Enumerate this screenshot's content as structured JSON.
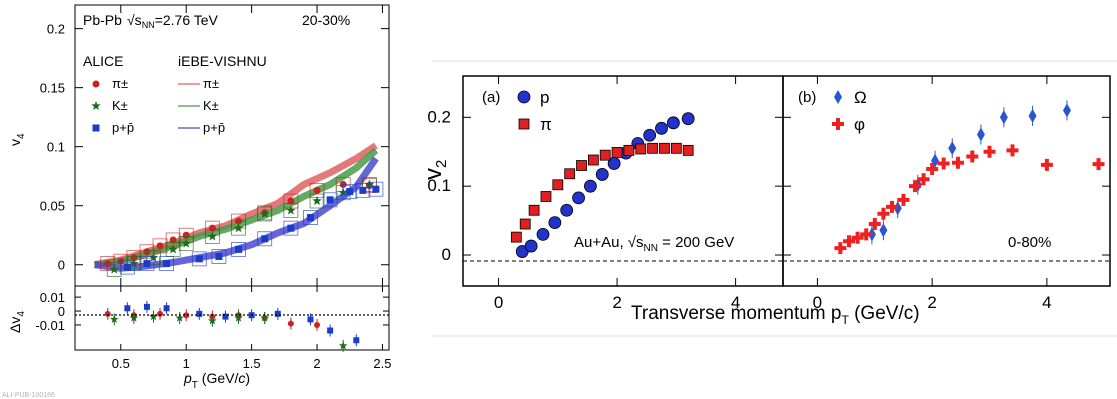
{
  "left_panel": {
    "header_system": "Pb-Pb",
    "header_energy": "√s",
    "header_energy_sub": "NN",
    "header_energy_value": "=2.76 TeV",
    "header_centrality": "20-30%",
    "legend_col1": "ALICE",
    "legend_col2": "iEBE-VISHNU",
    "ylabel_top": "v",
    "ylabel_top_sub": "4",
    "ylabel_bottom": "Δv",
    "ylabel_bottom_sub": "4",
    "xlabel": "p",
    "xlabel_sub": "T",
    "xlabel_unit": " (GeV/",
    "xlabel_unit_c": "c",
    "xlabel_close": ")",
    "watermark": "ALI-PUB-100186"
  },
  "right_panel": {
    "ylabel": "v",
    "ylabel_sub": "2",
    "xlabel": "Transverse momentum p",
    "xlabel_sub": "T",
    "xlabel_unit": " (GeV/c)",
    "panel_a_tag": "(a)",
    "panel_b_tag": "(b)",
    "panel_a_note_prefix": "Au+Au, ",
    "panel_a_note_sqrt": "√s",
    "panel_a_note_sub": "NN",
    "panel_a_note_suffix": " = 200 GeV",
    "panel_b_note": "0-80%"
  },
  "chart_data": [
    {
      "type": "scatter",
      "title": "",
      "xlabel": "pT (GeV/c)",
      "ylabel": "v4",
      "xlim": [
        0.15,
        2.55
      ],
      "ylim": [
        -0.018,
        0.22
      ],
      "x_ticks": [
        0.5,
        1,
        1.5,
        2,
        2.5
      ],
      "y_ticks": [
        0,
        0.05,
        0.1,
        0.15,
        0.2
      ],
      "series": [
        {
          "name": "π±",
          "group": "ALICE",
          "color": "#cc2222",
          "marker": "circle",
          "x": [
            0.4,
            0.5,
            0.6,
            0.7,
            0.8,
            0.9,
            1.0,
            1.2,
            1.4,
            1.6,
            1.8,
            2.0,
            2.2,
            2.4
          ],
          "y": [
            0.001,
            0.003,
            0.006,
            0.011,
            0.016,
            0.021,
            0.025,
            0.031,
            0.037,
            0.044,
            0.054,
            0.063,
            0.068,
            0.067
          ]
        },
        {
          "name": "K±",
          "group": "ALICE",
          "color": "#1a6e1a",
          "marker": "star",
          "x": [
            0.45,
            0.6,
            0.75,
            0.9,
            1.0,
            1.2,
            1.4,
            1.6,
            1.8,
            2.0,
            2.2,
            2.4
          ],
          "y": [
            -0.004,
            0.001,
            0.006,
            0.013,
            0.018,
            0.024,
            0.031,
            0.043,
            0.046,
            0.054,
            0.061,
            0.068
          ]
        },
        {
          "name": "p+p̄",
          "group": "ALICE",
          "color": "#1a3ccc",
          "marker": "square",
          "x": [
            0.55,
            0.7,
            0.85,
            1.1,
            1.25,
            1.4,
            1.6,
            1.8,
            1.95,
            2.1,
            2.25,
            2.35,
            2.45
          ],
          "y": [
            -0.002,
            0.001,
            0.001,
            0.005,
            0.007,
            0.013,
            0.022,
            0.031,
            0.04,
            0.055,
            0.062,
            0.063,
            0.064
          ]
        },
        {
          "name": "π±",
          "group": "iEBE-VISHNU",
          "color": "#e06060",
          "marker": "band",
          "x": [
            0.3,
            0.5,
            0.7,
            0.9,
            1.1,
            1.3,
            1.5,
            1.7,
            1.9,
            2.1,
            2.3,
            2.45
          ],
          "y": [
            0.0,
            0.004,
            0.011,
            0.018,
            0.027,
            0.033,
            0.043,
            0.052,
            0.068,
            0.078,
            0.09,
            0.101
          ]
        },
        {
          "name": "K±",
          "group": "iEBE-VISHNU",
          "color": "#4a9a4a",
          "marker": "band",
          "x": [
            0.3,
            0.5,
            0.7,
            0.9,
            1.1,
            1.3,
            1.5,
            1.7,
            1.9,
            2.1,
            2.3,
            2.45
          ],
          "y": [
            0.0,
            0.003,
            0.009,
            0.016,
            0.024,
            0.03,
            0.038,
            0.046,
            0.058,
            0.068,
            0.082,
            0.097
          ]
        },
        {
          "name": "p+p̄",
          "group": "iEBE-VISHNU",
          "color": "#4a4ad0",
          "marker": "band",
          "x": [
            0.3,
            0.5,
            0.7,
            0.9,
            1.1,
            1.3,
            1.5,
            1.7,
            1.9,
            2.1,
            2.3,
            2.45
          ],
          "y": [
            0.0,
            -0.003,
            -0.001,
            0.002,
            0.006,
            0.01,
            0.017,
            0.027,
            0.035,
            0.05,
            0.066,
            0.09
          ]
        }
      ]
    },
    {
      "type": "scatter",
      "title": "",
      "xlabel": "pT (GeV/c)",
      "ylabel": "Δv4",
      "xlim": [
        0.15,
        2.55
      ],
      "ylim": [
        -0.028,
        0.018
      ],
      "x_ticks": [
        0.5,
        1,
        1.5,
        2,
        2.5
      ],
      "y_ticks": [
        0.01,
        0,
        -0.01
      ],
      "series": [
        {
          "name": "π±",
          "color": "#cc2222",
          "marker": "circle",
          "x": [
            0.4,
            0.6,
            0.8,
            1.0,
            1.2,
            1.4,
            1.6,
            1.8,
            2.0
          ],
          "y": [
            -0.002,
            -0.003,
            -0.002,
            -0.003,
            -0.004,
            -0.003,
            -0.005,
            -0.009,
            -0.01
          ]
        },
        {
          "name": "K±",
          "color": "#1a6e1a",
          "marker": "star",
          "x": [
            0.45,
            0.6,
            0.75,
            0.95,
            1.2,
            1.4,
            1.6,
            2.2
          ],
          "y": [
            -0.006,
            -0.005,
            -0.004,
            -0.005,
            -0.007,
            -0.005,
            -0.005,
            -0.025
          ]
        },
        {
          "name": "p+p̄",
          "color": "#1a3ccc",
          "marker": "square",
          "x": [
            0.55,
            0.7,
            0.85,
            1.1,
            1.3,
            1.5,
            1.7,
            1.95,
            2.1,
            2.3
          ],
          "y": [
            0.002,
            0.003,
            0.002,
            -0.002,
            -0.004,
            -0.003,
            -0.002,
            -0.006,
            -0.014,
            -0.021
          ]
        }
      ]
    },
    {
      "type": "scatter",
      "title": "",
      "xlabel": "Transverse momentum pT (GeV/c)",
      "ylabel": "v2",
      "xlim": [
        -0.6,
        4.8
      ],
      "ylim": [
        -0.045,
        0.26
      ],
      "x_ticks": [
        0,
        2,
        4
      ],
      "y_ticks": [
        0,
        0.1,
        0.2
      ],
      "series": [
        {
          "name": "p",
          "color": "#2233cc",
          "marker": "circle",
          "x": [
            0.4,
            0.55,
            0.75,
            0.95,
            1.15,
            1.35,
            1.55,
            1.75,
            1.95,
            2.15,
            2.35,
            2.55,
            2.75,
            2.95,
            3.2
          ],
          "y": [
            0.005,
            0.013,
            0.03,
            0.047,
            0.065,
            0.083,
            0.1,
            0.117,
            0.133,
            0.148,
            0.162,
            0.174,
            0.184,
            0.192,
            0.198
          ]
        },
        {
          "name": "π",
          "color": "#e02020",
          "marker": "square",
          "x": [
            0.3,
            0.45,
            0.6,
            0.8,
            1.0,
            1.2,
            1.4,
            1.6,
            1.8,
            2.0,
            2.2,
            2.4,
            2.6,
            2.8,
            3.0,
            3.2
          ],
          "y": [
            0.026,
            0.045,
            0.065,
            0.085,
            0.102,
            0.118,
            0.13,
            0.138,
            0.145,
            0.149,
            0.152,
            0.154,
            0.155,
            0.155,
            0.155,
            0.152
          ]
        }
      ]
    },
    {
      "type": "scatter",
      "title": "",
      "xlabel": "Transverse momentum pT (GeV/c)",
      "ylabel": "v2",
      "xlim": [
        -0.6,
        5.1
      ],
      "ylim": [
        -0.045,
        0.26
      ],
      "x_ticks": [
        0,
        2,
        4
      ],
      "y_ticks": [
        0,
        0.1,
        0.2
      ],
      "series": [
        {
          "name": "Ω",
          "color": "#2a55d0",
          "marker": "diamond",
          "x": [
            0.95,
            1.15,
            1.4,
            1.75,
            2.05,
            2.35,
            2.85,
            3.25,
            3.75,
            4.35
          ],
          "y": [
            0.03,
            0.036,
            0.068,
            0.102,
            0.137,
            0.155,
            0.175,
            0.2,
            0.202,
            0.21
          ]
        },
        {
          "name": "φ",
          "color": "#f02020",
          "marker": "cross",
          "x": [
            0.4,
            0.55,
            0.7,
            0.85,
            1.0,
            1.15,
            1.3,
            1.5,
            1.7,
            1.85,
            2.0,
            2.2,
            2.45,
            2.7,
            3.0,
            3.4,
            4.0,
            4.9
          ],
          "y": [
            0.01,
            0.02,
            0.025,
            0.03,
            0.045,
            0.06,
            0.07,
            0.08,
            0.1,
            0.11,
            0.125,
            0.133,
            0.134,
            0.143,
            0.15,
            0.152,
            0.131,
            0.132
          ]
        }
      ]
    }
  ]
}
